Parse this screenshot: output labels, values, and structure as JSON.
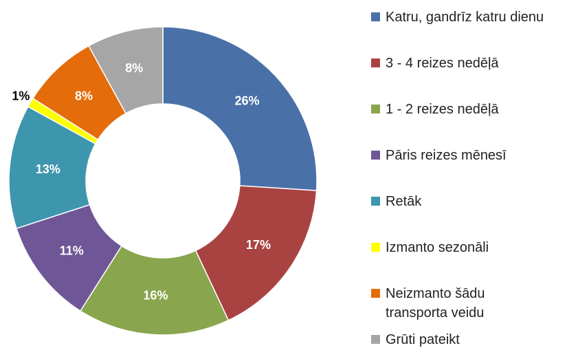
{
  "chart_data": {
    "type": "donut",
    "categories": [
      "Katru, gandrīz katru dienu",
      "3 - 4 reizes nedēļā",
      "1 - 2 reizes nedēļā",
      "Pāris reizes mēnesī",
      "Retāk",
      "Izmanto sezonāli",
      "Neizmanto šādu transporta veidu",
      "Grūti pateikt"
    ],
    "values": [
      26,
      17,
      16,
      11,
      13,
      1,
      8,
      8
    ],
    "value_labels": [
      "26%",
      "17%",
      "16%",
      "11%",
      "13%",
      "1%",
      "8%",
      "8%"
    ],
    "colors": [
      "#4a70a8",
      "#a94342",
      "#89a54e",
      "#6f5797",
      "#3e96ae",
      "#ffff00",
      "#e46c0a",
      "#a6a6a6"
    ],
    "legend": "right"
  }
}
